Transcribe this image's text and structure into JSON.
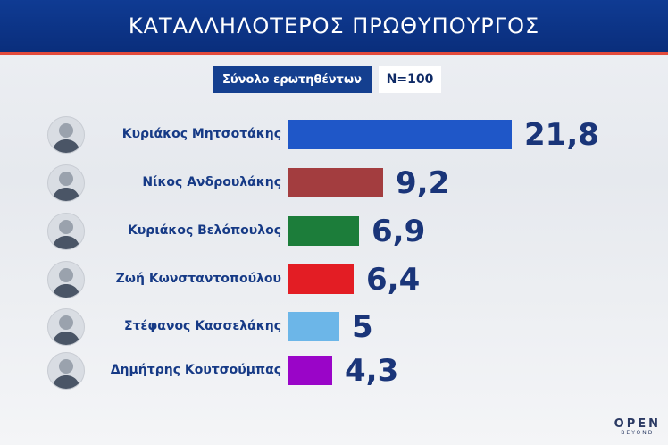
{
  "header": {
    "title": "ΚΑΤΑΛΛΗΛΟΤΕΡΟΣ ΠΡΩΘΥΠΟΥΡΓΟΣ"
  },
  "subheader": {
    "label": "Σύνολο ερωτηθέντων",
    "n": "N=100"
  },
  "logo": {
    "main": "OPEN",
    "sub": "BEYOND"
  },
  "chart_data": {
    "type": "bar",
    "orientation": "horizontal",
    "title": "ΚΑΤΑΛΛΗΛΟΤΕΡΟΣ ΠΡΩΘΥΠΟΥΡΓΟΣ",
    "categories": [
      "Κυριάκος Μητσοτάκης",
      "Νίκος Ανδρουλάκης",
      "Κυριάκος Βελόπουλος",
      "Ζωή Κωνσταντοπούλου",
      "Στέφανος Κασσελάκης",
      "Δημήτρης Κουτσούμπας"
    ],
    "values": [
      21.8,
      9.2,
      6.9,
      6.4,
      5,
      4.3
    ],
    "value_labels": [
      "21,8",
      "9,2",
      "6,9",
      "6,4",
      "5",
      "4,3"
    ],
    "colors": [
      "#1f57c8",
      "#a33d3f",
      "#1c7d3a",
      "#e31d24",
      "#6cb6e8",
      "#9a05c8"
    ],
    "grid": false,
    "legend": "none"
  }
}
